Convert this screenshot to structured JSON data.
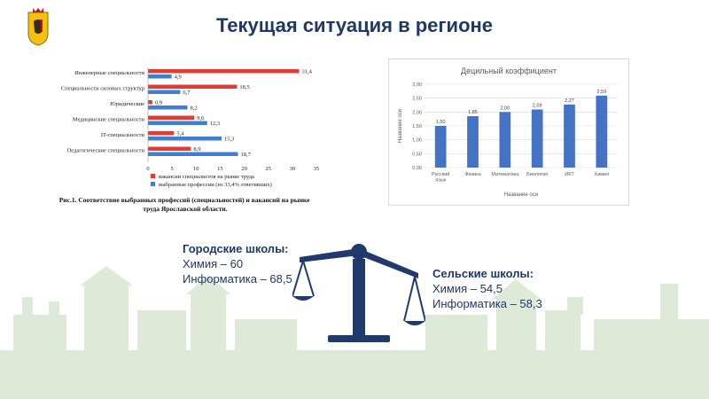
{
  "slide": {
    "title": "Текущая ситуация в регионе",
    "city_schools": {
      "heading": "Городские школы:",
      "lines": [
        "Химия – 60",
        "Информатика – 68,5"
      ]
    },
    "rural_schools": {
      "heading": "Сельские школы:",
      "lines": [
        "Химия – 54,5",
        "Информатика – 58,3"
      ]
    },
    "colors": {
      "title": "#1f3864",
      "red": "#e03c31",
      "blue": "#3f7fd1",
      "chart2_bar": "#4472c4",
      "emblem": "#f4c20d"
    }
  },
  "chart_data": [
    {
      "type": "bar",
      "orientation": "horizontal",
      "categories": [
        "Инженерные специальности",
        "Специальности силовых структур",
        "Юридические",
        "Медицинские специальности",
        "IT-специальности",
        "Педагогические специальности"
      ],
      "series": [
        {
          "name": "вакансии специалистов на рынке труда",
          "values": [
            31.4,
            18.5,
            0.9,
            9.6,
            5.4,
            8.9
          ],
          "labels": [
            "31,4",
            "18,5",
            "0,9",
            "9,6",
            "5,4",
            "8,9"
          ],
          "color": "#e03c31"
        },
        {
          "name": "выбранные профессии (из 33,4% ответивших)",
          "values": [
            4.9,
            6.7,
            8.2,
            12.3,
            15.3,
            18.7
          ],
          "labels": [
            "4,9",
            "6,7",
            "8,2",
            "12,3",
            "15,3",
            "18,7"
          ],
          "color": "#3f7fd1"
        }
      ],
      "xlim": [
        0,
        35
      ],
      "xticks": [
        "0",
        "5",
        "10",
        "15",
        "20",
        "25",
        "30",
        "35"
      ],
      "caption_bold": "Рис.1.",
      "caption": "Соответствие выбранных профессий (специальностей) и вакансий на рынке труда Ярославской области.",
      "legend_position": "bottom"
    },
    {
      "type": "bar",
      "title": "Децильный коэффициент",
      "xlabel": "Название оси",
      "ylabel": "Название оси",
      "categories": [
        "Русский язык",
        "Физика",
        "Математика",
        "Биология",
        "ИКТ",
        "Химия"
      ],
      "values": [
        1.5,
        1.85,
        2.0,
        2.09,
        2.27,
        2.59
      ],
      "labels": [
        "1,50",
        "1,85",
        "2,00",
        "2,09",
        "2,27",
        "2,59"
      ],
      "ylim": [
        0,
        3
      ],
      "yticks": [
        "0,00",
        "0,50",
        "1,00",
        "1,50",
        "2,00",
        "2,50",
        "3,00"
      ],
      "grid": true
    }
  ]
}
